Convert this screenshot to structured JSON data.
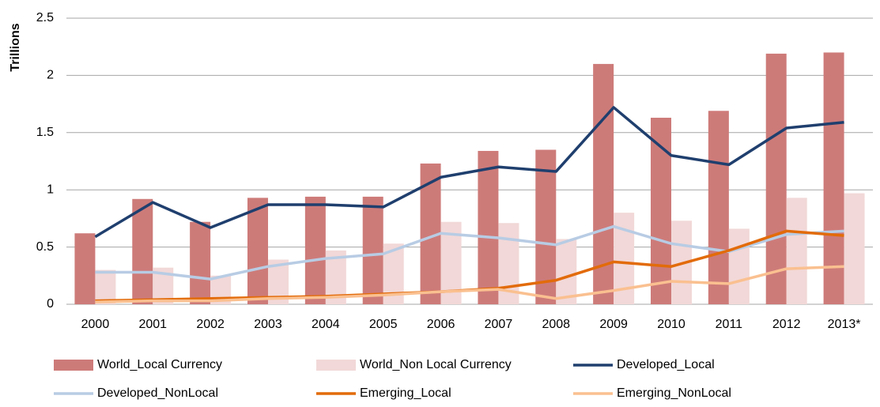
{
  "chart_data": {
    "type": "bar",
    "y_label": "Trillions",
    "categories": [
      "2000",
      "2001",
      "2002",
      "2003",
      "2004",
      "2005",
      "2006",
      "2007",
      "2008",
      "2009",
      "2010",
      "2011",
      "2012",
      "2013*"
    ],
    "ylim": [
      0,
      2.5
    ],
    "yticks": [
      0,
      0.5,
      1,
      1.5,
      2,
      2.5
    ],
    "grid": true,
    "series": [
      {
        "name": "World_Local Currency",
        "type": "bar",
        "color": "#cd7b79",
        "values": [
          0.62,
          0.92,
          0.72,
          0.93,
          0.94,
          0.94,
          1.23,
          1.34,
          1.35,
          2.1,
          1.63,
          1.69,
          2.19,
          2.2
        ]
      },
      {
        "name": "World_Non Local Currency",
        "type": "bar",
        "color": "#f2d8d8",
        "values": [
          0.3,
          0.32,
          0.25,
          0.39,
          0.47,
          0.53,
          0.72,
          0.71,
          0.57,
          0.8,
          0.73,
          0.66,
          0.93,
          0.97
        ]
      },
      {
        "name": "Developed_Local",
        "type": "line",
        "color": "#1f3f6e",
        "values": [
          0.59,
          0.89,
          0.67,
          0.87,
          0.87,
          0.85,
          1.11,
          1.2,
          1.16,
          1.72,
          1.3,
          1.22,
          1.54,
          1.59
        ]
      },
      {
        "name": "Developed_NonLocal",
        "type": "line",
        "color": "#b8cce4",
        "values": [
          0.28,
          0.28,
          0.22,
          0.33,
          0.4,
          0.44,
          0.62,
          0.58,
          0.52,
          0.68,
          0.53,
          0.46,
          0.61,
          0.64
        ]
      },
      {
        "name": "Emerging_Local",
        "type": "line",
        "color": "#e26b0a",
        "values": [
          0.03,
          0.04,
          0.05,
          0.06,
          0.07,
          0.09,
          0.11,
          0.14,
          0.21,
          0.37,
          0.33,
          0.47,
          0.64,
          0.6
        ]
      },
      {
        "name": "Emerging_NonLocal",
        "type": "line",
        "color": "#fac090",
        "values": [
          0.02,
          0.03,
          0.03,
          0.05,
          0.06,
          0.08,
          0.11,
          0.13,
          0.05,
          0.12,
          0.2,
          0.18,
          0.31,
          0.33
        ]
      }
    ]
  }
}
